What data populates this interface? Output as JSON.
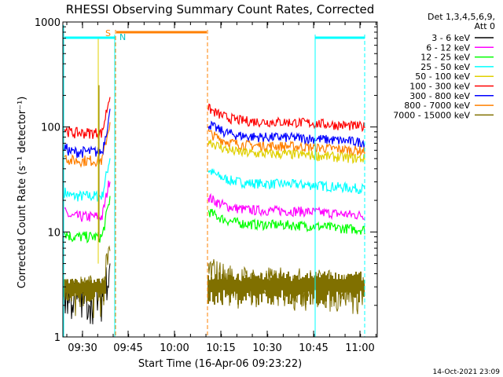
{
  "chart_data": {
    "type": "line",
    "title": "RHESSI Observing Summary Count Rates, Corrected",
    "xlabel": "Start Time (16-Apr-06 09:23:22)",
    "ylabel": "Corrected Count Rate (s⁻¹ detector⁻¹)",
    "y_scale": "log",
    "ylim": [
      1,
      1000
    ],
    "y_ticks": [
      {
        "value": 1,
        "label": "1"
      },
      {
        "value": 10,
        "label": "10"
      },
      {
        "value": 100,
        "label": "100"
      },
      {
        "value": 1000,
        "label": "1000"
      }
    ],
    "x_ticks": [
      "09:30",
      "09:45",
      "10:00",
      "10:15",
      "10:30",
      "10:45",
      "11:00"
    ],
    "legend_header": [
      "Det 1,3,4,5,6,9,",
      "Att 0"
    ],
    "legend_position": "top-right",
    "annotations": [
      "S",
      "N"
    ],
    "footer_timestamp": "14-Oct-2021 23:09",
    "series": [
      {
        "name": "3 - 6 keV",
        "color": "#000000",
        "values": [
          {
            "range": "pre",
            "level": 2.4
          },
          {
            "range": "post",
            "level": null
          }
        ]
      },
      {
        "name": "6 - 12 keV",
        "color": "#ff00ff",
        "values": [
          {
            "range": "pre",
            "level": 14
          },
          {
            "range": "post",
            "level": 15
          }
        ]
      },
      {
        "name": "12 - 25 keV",
        "color": "#00ff00",
        "values": [
          {
            "range": "pre",
            "level": 9
          },
          {
            "range": "post",
            "level": 11
          }
        ]
      },
      {
        "name": "25 - 50 keV",
        "color": "#00ffff",
        "values": [
          {
            "range": "pre",
            "level": 22
          },
          {
            "range": "post",
            "level": 27
          }
        ]
      },
      {
        "name": "50 - 100 keV",
        "color": "#e0d000",
        "values": [
          {
            "range": "pre",
            "level": null
          },
          {
            "range": "post",
            "level": 52
          }
        ]
      },
      {
        "name": "100 - 300 keV",
        "color": "#ff0000",
        "values": [
          {
            "range": "pre",
            "level": 88
          },
          {
            "range": "post",
            "level": 105
          }
        ]
      },
      {
        "name": "300 - 800 keV",
        "color": "#0000ff",
        "values": [
          {
            "range": "pre",
            "level": 58
          },
          {
            "range": "post",
            "level": 75
          }
        ]
      },
      {
        "name": "800 - 7000 keV",
        "color": "#ff8000",
        "values": [
          {
            "range": "pre",
            "level": 48
          },
          {
            "range": "post",
            "level": 62
          }
        ]
      },
      {
        "name": "7000 - 15000 keV",
        "color": "#807000",
        "values": [
          {
            "range": "pre",
            "level": 2.7
          },
          {
            "range": "post",
            "level": 3
          }
        ]
      }
    ]
  }
}
